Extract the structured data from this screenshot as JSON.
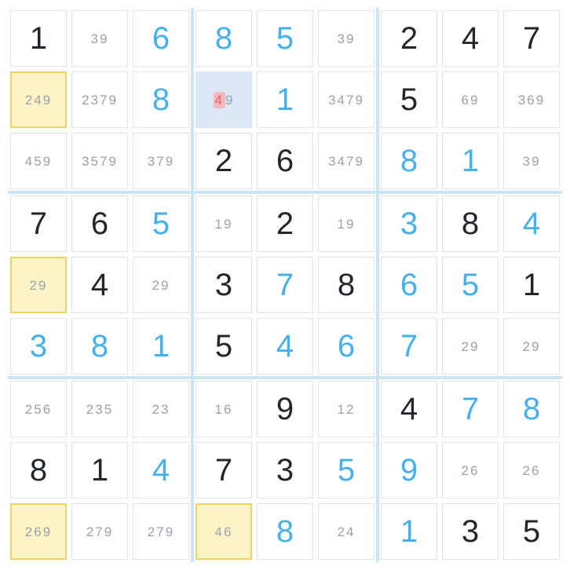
{
  "app": {
    "name": "sudoku-board",
    "grid_size": "9x9"
  },
  "colors": {
    "given_digit": "#23272b",
    "solved_digit": "#45b1ec",
    "notes_digit": "#9ba1ab",
    "yellow_cell_bg": "#fcf4c6",
    "yellow_cell_border": "#f0d264",
    "selected_cell_bg": "#dce7f8",
    "red_note_bg": "#f7b9bd",
    "red_note_text": "#dd616b",
    "box_separator": "#c9e6f6",
    "cell_border": "#e3e3e3"
  },
  "board": {
    "rows": 9,
    "cols": 9,
    "cells": [
      [
        {
          "v": "1",
          "k": "given"
        },
        {
          "v": "39",
          "k": "notes"
        },
        {
          "v": "6",
          "k": "solved"
        },
        {
          "v": "8",
          "k": "solved"
        },
        {
          "v": "5",
          "k": "solved"
        },
        {
          "v": "39",
          "k": "notes"
        },
        {
          "v": "2",
          "k": "given"
        },
        {
          "v": "4",
          "k": "given"
        },
        {
          "v": "7",
          "k": "given"
        }
      ],
      [
        {
          "v": "249",
          "k": "notes",
          "hl": "yellow"
        },
        {
          "v": "2379",
          "k": "notes"
        },
        {
          "v": "8",
          "k": "solved"
        },
        {
          "v": "49",
          "k": "notes",
          "hl": "selected",
          "red": "4"
        },
        {
          "v": "1",
          "k": "solved"
        },
        {
          "v": "3479",
          "k": "notes"
        },
        {
          "v": "5",
          "k": "given"
        },
        {
          "v": "69",
          "k": "notes"
        },
        {
          "v": "369",
          "k": "notes"
        }
      ],
      [
        {
          "v": "459",
          "k": "notes"
        },
        {
          "v": "3579",
          "k": "notes"
        },
        {
          "v": "379",
          "k": "notes"
        },
        {
          "v": "2",
          "k": "given"
        },
        {
          "v": "6",
          "k": "given"
        },
        {
          "v": "3479",
          "k": "notes"
        },
        {
          "v": "8",
          "k": "solved"
        },
        {
          "v": "1",
          "k": "solved"
        },
        {
          "v": "39",
          "k": "notes"
        }
      ],
      [
        {
          "v": "7",
          "k": "given"
        },
        {
          "v": "6",
          "k": "given"
        },
        {
          "v": "5",
          "k": "solved"
        },
        {
          "v": "19",
          "k": "notes"
        },
        {
          "v": "2",
          "k": "given"
        },
        {
          "v": "19",
          "k": "notes"
        },
        {
          "v": "3",
          "k": "solved"
        },
        {
          "v": "8",
          "k": "given"
        },
        {
          "v": "4",
          "k": "solved"
        }
      ],
      [
        {
          "v": "29",
          "k": "notes",
          "hl": "yellow"
        },
        {
          "v": "4",
          "k": "given"
        },
        {
          "v": "29",
          "k": "notes"
        },
        {
          "v": "3",
          "k": "given"
        },
        {
          "v": "7",
          "k": "solved"
        },
        {
          "v": "8",
          "k": "given"
        },
        {
          "v": "6",
          "k": "solved"
        },
        {
          "v": "5",
          "k": "solved"
        },
        {
          "v": "1",
          "k": "given"
        }
      ],
      [
        {
          "v": "3",
          "k": "solved"
        },
        {
          "v": "8",
          "k": "solved"
        },
        {
          "v": "1",
          "k": "solved"
        },
        {
          "v": "5",
          "k": "given"
        },
        {
          "v": "4",
          "k": "solved"
        },
        {
          "v": "6",
          "k": "solved"
        },
        {
          "v": "7",
          "k": "solved"
        },
        {
          "v": "29",
          "k": "notes"
        },
        {
          "v": "29",
          "k": "notes"
        }
      ],
      [
        {
          "v": "256",
          "k": "notes"
        },
        {
          "v": "235",
          "k": "notes"
        },
        {
          "v": "23",
          "k": "notes"
        },
        {
          "v": "16",
          "k": "notes"
        },
        {
          "v": "9",
          "k": "given"
        },
        {
          "v": "12",
          "k": "notes"
        },
        {
          "v": "4",
          "k": "given"
        },
        {
          "v": "7",
          "k": "solved"
        },
        {
          "v": "8",
          "k": "solved"
        }
      ],
      [
        {
          "v": "8",
          "k": "given"
        },
        {
          "v": "1",
          "k": "given"
        },
        {
          "v": "4",
          "k": "solved"
        },
        {
          "v": "7",
          "k": "given"
        },
        {
          "v": "3",
          "k": "given"
        },
        {
          "v": "5",
          "k": "solved"
        },
        {
          "v": "9",
          "k": "solved"
        },
        {
          "v": "26",
          "k": "notes"
        },
        {
          "v": "26",
          "k": "notes"
        }
      ],
      [
        {
          "v": "269",
          "k": "notes",
          "hl": "yellow"
        },
        {
          "v": "279",
          "k": "notes"
        },
        {
          "v": "279",
          "k": "notes"
        },
        {
          "v": "46",
          "k": "notes",
          "hl": "yellow"
        },
        {
          "v": "8",
          "k": "solved"
        },
        {
          "v": "24",
          "k": "notes"
        },
        {
          "v": "1",
          "k": "solved"
        },
        {
          "v": "3",
          "k": "given"
        },
        {
          "v": "5",
          "k": "given"
        }
      ]
    ]
  }
}
